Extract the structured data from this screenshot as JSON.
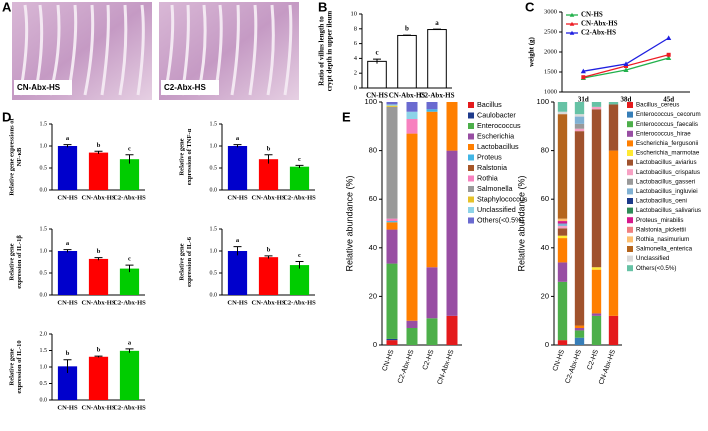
{
  "panel_labels": [
    "A",
    "B",
    "C",
    "D",
    "E"
  ],
  "images": [
    {
      "label": "CN-Abx-HS"
    },
    {
      "label": "C2-Abx-HS"
    }
  ],
  "chart_data": [
    {
      "type": "bar",
      "ylabel": [
        "Ratio of villus length to",
        "crypt depth in upper ileum"
      ],
      "categories": [
        "CN-HS",
        "CN-Abx-HS",
        "C2-Abx-HS"
      ],
      "values": [
        3.6,
        7.1,
        7.9
      ],
      "errors": [
        0.3,
        0.05,
        0.05
      ],
      "annotations": [
        "c",
        "b",
        "a"
      ],
      "color": "#ffffff",
      "edgecolor": "#000000",
      "ylim": [
        0,
        10
      ],
      "yticks": [
        0,
        2,
        4,
        6,
        8,
        10
      ]
    },
    {
      "type": "line",
      "ylabel": [
        "weight (g)"
      ],
      "categories": [
        "31d",
        "38d",
        "45d"
      ],
      "series": [
        {
          "name": "CN-HS",
          "color": "#22b14c",
          "values": [
            1350,
            1550,
            1850
          ]
        },
        {
          "name": "CN-Abx-HS",
          "color": "#ed1c24",
          "values": [
            1370,
            1650,
            1930
          ]
        },
        {
          "name": "C2-Abx-HS",
          "color": "#1f1fe0",
          "values": [
            1520,
            1700,
            2350
          ]
        }
      ],
      "legend": "upper left",
      "ylim": [
        1000,
        3000
      ],
      "yticks": [
        1000,
        1500,
        2000,
        2500,
        3000
      ]
    },
    {
      "type": "bar",
      "ylabel": [
        "Relative gene expressions of",
        "NF-κB"
      ],
      "categories": [
        "CN-HS",
        "CN-Abx-HS",
        "C2-Abx-HS"
      ],
      "values": [
        1.0,
        0.85,
        0.7
      ],
      "errors": [
        0.03,
        0.03,
        0.1
      ],
      "annotations": [
        "a",
        "b",
        "c"
      ],
      "colors": [
        "#0000cc",
        "#ff0000",
        "#00cc00"
      ],
      "ylim": [
        0,
        1.5
      ],
      "yticks": [
        {
          "value": 0,
          "label": "0.0"
        },
        {
          "value": 0.5,
          "label": "0.5"
        },
        {
          "value": 1,
          "label": "1.0"
        },
        {
          "value": 1.5,
          "label": "1.5"
        }
      ]
    },
    {
      "type": "bar",
      "ylabel": [
        "Relative gene",
        "expression of TNF-α"
      ],
      "categories": [
        "CN-HS",
        "CN-Abx-HS",
        "C2-Abx-HS"
      ],
      "values": [
        1.0,
        0.7,
        0.53
      ],
      "errors": [
        0.03,
        0.1,
        0.03
      ],
      "annotations": [
        "a",
        "b",
        "c"
      ],
      "colors": [
        "#0000cc",
        "#ff0000",
        "#00cc00"
      ],
      "ylim": [
        0,
        1.5
      ],
      "yticks": [
        {
          "value": 0,
          "label": "0.0"
        },
        {
          "value": 0.5,
          "label": "0.5"
        },
        {
          "value": 1,
          "label": "1.0"
        },
        {
          "value": 1.5,
          "label": "1.5"
        }
      ]
    },
    {
      "type": "bar",
      "ylabel": [
        "Relative gene",
        "expression of IL-1β"
      ],
      "categories": [
        "CN-HS",
        "CN-Abx-HS",
        "C2-Abx-HS"
      ],
      "values": [
        1.0,
        0.82,
        0.6
      ],
      "errors": [
        0.03,
        0.03,
        0.08
      ],
      "annotations": [
        "a",
        "b",
        "c"
      ],
      "colors": [
        "#0000cc",
        "#ff0000",
        "#00cc00"
      ],
      "ylim": [
        0,
        1.5
      ],
      "yticks": [
        {
          "value": 0,
          "label": "0.0"
        },
        {
          "value": 0.5,
          "label": "0.5"
        },
        {
          "value": 1,
          "label": "1.0"
        },
        {
          "value": 1.5,
          "label": "1.5"
        }
      ]
    },
    {
      "type": "bar",
      "ylabel": [
        "Relative gene",
        "expression of IL-6"
      ],
      "categories": [
        "CN-HS",
        "CN-Abx-HS",
        "C2-Abx-HS"
      ],
      "values": [
        1.0,
        0.86,
        0.68
      ],
      "errors": [
        0.1,
        0.03,
        0.08
      ],
      "annotations": [
        "a",
        "b",
        "c"
      ],
      "colors": [
        "#0000cc",
        "#ff0000",
        "#00cc00"
      ],
      "ylim": [
        0,
        1.5
      ],
      "yticks": [
        {
          "value": 0,
          "label": "0.0"
        },
        {
          "value": 0.5,
          "label": "0.5"
        },
        {
          "value": 1,
          "label": "1.0"
        },
        {
          "value": 1.5,
          "label": "1.5"
        }
      ]
    },
    {
      "type": "bar",
      "ylabel": [
        "Relative gene",
        "expression of IL-10"
      ],
      "categories": [
        "CN-HS",
        "CN-Abx-HS",
        "C2-Abx-HS"
      ],
      "values": [
        1.02,
        1.31,
        1.49
      ],
      "errors": [
        0.2,
        0.02,
        0.06
      ],
      "annotations": [
        "b",
        "b",
        "a"
      ],
      "colors": [
        "#0000cc",
        "#ff0000",
        "#00cc00"
      ],
      "ylim": [
        0,
        2
      ],
      "yticks": [
        {
          "value": 0,
          "label": "0.0"
        },
        {
          "value": 0.5,
          "label": "0.5"
        },
        {
          "value": 1,
          "label": "1.0"
        },
        {
          "value": 1.5,
          "label": "1.5"
        },
        {
          "value": 2,
          "label": "2.0"
        }
      ]
    },
    {
      "type": "stacked_bar",
      "ylabel": [
        "Relative abundance (%)"
      ],
      "categories": [
        "CN-HS",
        "C2-Abx-HS",
        "C2-HS",
        "CN-Abx-HS"
      ],
      "series": [
        {
          "name": "Bacillus",
          "color": "#e41a1c",
          "values": [
            2,
            0,
            0,
            12
          ]
        },
        {
          "name": "Caulobacter",
          "color": "#1f3b8c",
          "values": [
            0.5,
            0,
            0,
            0
          ]
        },
        {
          "name": "Enterococcus",
          "color": "#4daf4a",
          "values": [
            31,
            7,
            11,
            0
          ]
        },
        {
          "name": "Escherichia",
          "color": "#984ea3",
          "values": [
            14,
            3,
            21,
            68
          ]
        },
        {
          "name": "Lactobacillus",
          "color": "#ff7f00",
          "values": [
            3,
            77,
            64,
            20
          ]
        },
        {
          "name": "Proteus",
          "color": "#41b6e6",
          "values": [
            0.5,
            0,
            1,
            0
          ]
        },
        {
          "name": "Ralstonia",
          "color": "#a65628",
          "values": [
            0,
            0,
            0,
            0
          ]
        },
        {
          "name": "Rothia",
          "color": "#f781bf",
          "values": [
            1,
            6,
            0,
            0
          ]
        },
        {
          "name": "Salmonella",
          "color": "#999999",
          "values": [
            46,
            0,
            0,
            0
          ]
        },
        {
          "name": "Staphylococcus",
          "color": "#e6c229",
          "values": [
            0.5,
            0,
            0,
            0
          ]
        },
        {
          "name": "Unclassified",
          "color": "#8dd3e8",
          "values": [
            0.5,
            3,
            0,
            0
          ]
        },
        {
          "name": "Others(<0.5%)",
          "color": "#6a6ad0",
          "values": [
            1,
            4,
            3,
            0
          ]
        }
      ],
      "ylim": [
        0,
        100
      ],
      "yticks": [
        0,
        20,
        40,
        60,
        80,
        100
      ]
    },
    {
      "type": "stacked_bar",
      "ylabel": [
        "Relative abundance (%)"
      ],
      "categories": [
        "CN-HS",
        "C2-Abx-HS",
        "C2-HS",
        "CN-Abx-HS"
      ],
      "series": [
        {
          "name": "Bacillus_cereus",
          "color": "#e41a1c",
          "values": [
            2,
            0,
            0,
            12
          ]
        },
        {
          "name": "Enterococcus_cecorum",
          "color": "#377eb8",
          "values": [
            0,
            3,
            0,
            0
          ]
        },
        {
          "name": "Enterococcus_faecalis",
          "color": "#4daf4a",
          "values": [
            24,
            3,
            12,
            0
          ]
        },
        {
          "name": "Enterococcus_hirae",
          "color": "#984ea3",
          "values": [
            8,
            1,
            1,
            0
          ]
        },
        {
          "name": "Escherichia_fergusonii",
          "color": "#ff7f00",
          "values": [
            10,
            1,
            18,
            68
          ]
        },
        {
          "name": "Escherichia_marmotae",
          "color": "#ffe933",
          "values": [
            1,
            0,
            1,
            0
          ]
        },
        {
          "name": "Lactobacillus_aviarius",
          "color": "#a0522d",
          "values": [
            3,
            80,
            65,
            19
          ]
        },
        {
          "name": "Lactobacillus_crispatus",
          "color": "#f7a1c4",
          "values": [
            1,
            1,
            1,
            0
          ]
        },
        {
          "name": "Lactobacillus_gasseri",
          "color": "#999999",
          "values": [
            0,
            2,
            0,
            0
          ]
        },
        {
          "name": "Lactobacillus_ingluviei",
          "color": "#80b1d3",
          "values": [
            1,
            3,
            0,
            0
          ]
        },
        {
          "name": "Lactobacillus_oeni",
          "color": "#1b3a8a",
          "values": [
            0,
            0,
            0,
            0
          ]
        },
        {
          "name": "Lactobacillus_salivarius",
          "color": "#2e8b57",
          "values": [
            0,
            0,
            0,
            0
          ]
        },
        {
          "name": "Proteus_mirabilis",
          "color": "#d6198c",
          "values": [
            1,
            0,
            0,
            0
          ]
        },
        {
          "name": "Ralstonia_pickettii",
          "color": "#f08080",
          "values": [
            0,
            0,
            0,
            0
          ]
        },
        {
          "name": "Rothia_nasimurium",
          "color": "#fdbf6f",
          "values": [
            1,
            0,
            0,
            0
          ]
        },
        {
          "name": "Salmonella_enterica",
          "color": "#b5651d",
          "values": [
            43,
            0,
            0,
            0
          ]
        },
        {
          "name": "Unclassified",
          "color": "#d9d9d9",
          "values": [
            1,
            1,
            0,
            0
          ]
        },
        {
          "name": "Others(<0.5%)",
          "color": "#66c2a5",
          "values": [
            4,
            5,
            2,
            1
          ]
        }
      ],
      "ylim": [
        0,
        100
      ],
      "yticks": [
        0,
        20,
        40,
        60,
        80,
        100
      ]
    }
  ]
}
